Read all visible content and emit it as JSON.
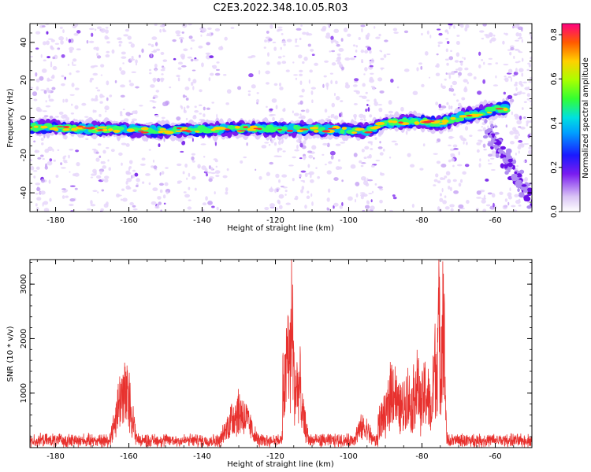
{
  "title": "C2E3.2022.348.10.05.R03",
  "chart_data": [
    {
      "type": "heatmap",
      "xlabel": "Height of straight line (km)",
      "ylabel": "Frequency (Hz)",
      "xlim": [
        -187,
        -50
      ],
      "ylim": [
        -50,
        50
      ],
      "xticks": [
        -180,
        -160,
        -140,
        -120,
        -100,
        -80,
        -60
      ],
      "yticks": [
        -40,
        -20,
        0,
        20,
        40
      ],
      "colorbar": {
        "label": "Normalized spectral amplitude",
        "range": [
          0.0,
          0.85
        ],
        "ticks": [
          0.0,
          0.2,
          0.4,
          0.6,
          0.8
        ]
      },
      "ridge": {
        "description": "strong narrow-band signal",
        "x": [
          -187,
          -170,
          -150,
          -130,
          -110,
          -95,
          -90,
          -80,
          -75,
          -70,
          -63,
          -58
        ],
        "freq": [
          -5,
          -6,
          -7,
          -6,
          -6,
          -7,
          -3,
          -2,
          -3,
          0,
          3,
          5
        ]
      },
      "noise_bands_x": [
        -183,
        -176,
        -168,
        -160,
        -152,
        -144,
        -138,
        -120,
        -112,
        -104,
        -96,
        -93,
        -74,
        -70,
        -62,
        -55,
        -52
      ],
      "grid": false
    },
    {
      "type": "line",
      "xlabel": "Height of straight line (km)",
      "ylabel": "SNR (10 * v/v)",
      "xlim": [
        -187,
        -50
      ],
      "ylim": [
        0,
        3450
      ],
      "xticks": [
        -180,
        -160,
        -140,
        -120,
        -100,
        -80,
        -60
      ],
      "yticks": [
        1000,
        2000,
        3000
      ],
      "color": "#e8312e",
      "baseline": 180,
      "peaks": [
        {
          "x": -161.5,
          "y": 1350,
          "w": 2.0
        },
        {
          "x": -160.5,
          "y": 1250,
          "w": 1.5
        },
        {
          "x": -130,
          "y": 900,
          "w": 3
        },
        {
          "x": -116.5,
          "y": 2450,
          "w": 0.8
        },
        {
          "x": -115.5,
          "y": 3150,
          "w": 0.5
        },
        {
          "x": -113.5,
          "y": 1000,
          "w": 1.5
        },
        {
          "x": -88,
          "y": 1500,
          "w": 1.5
        },
        {
          "x": -84,
          "y": 1300,
          "w": 1.2
        },
        {
          "x": -81.5,
          "y": 1580,
          "w": 1.2
        },
        {
          "x": -79,
          "y": 1400,
          "w": 1.5
        },
        {
          "x": -76.5,
          "y": 2050,
          "w": 0.6
        },
        {
          "x": -74.3,
          "y": 3420,
          "w": 0.5
        },
        {
          "x": -75.5,
          "y": 3000,
          "w": 0.6
        },
        {
          "x": -96,
          "y": 500,
          "w": 2
        }
      ],
      "grid": false
    }
  ]
}
